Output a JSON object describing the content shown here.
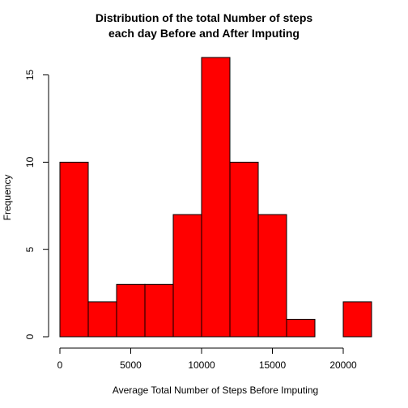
{
  "chart_data": {
    "type": "bar",
    "title": [
      "Distribution of the total Number of steps",
      "each day Before and After Imputing"
    ],
    "xlabel": "Average Total Number of Steps Before Imputing",
    "ylabel": "Frequency",
    "bins": [
      {
        "start": 0,
        "end": 2000,
        "value": 10
      },
      {
        "start": 2000,
        "end": 4000,
        "value": 2
      },
      {
        "start": 4000,
        "end": 6000,
        "value": 3
      },
      {
        "start": 6000,
        "end": 8000,
        "value": 3
      },
      {
        "start": 8000,
        "end": 10000,
        "value": 7
      },
      {
        "start": 10000,
        "end": 12000,
        "value": 16
      },
      {
        "start": 12000,
        "end": 14000,
        "value": 10
      },
      {
        "start": 14000,
        "end": 16000,
        "value": 7
      },
      {
        "start": 16000,
        "end": 18000,
        "value": 1
      },
      {
        "start": 18000,
        "end": 20000,
        "value": 0
      },
      {
        "start": 20000,
        "end": 22000,
        "value": 2
      }
    ],
    "xlim": [
      0,
      22000
    ],
    "ylim": [
      0,
      16
    ],
    "x_ticks": [
      0,
      5000,
      10000,
      15000,
      20000
    ],
    "y_ticks": [
      0,
      5,
      10,
      15
    ],
    "bar_color": "#ff0000",
    "bar_border_color": "#000000",
    "grid": false
  }
}
